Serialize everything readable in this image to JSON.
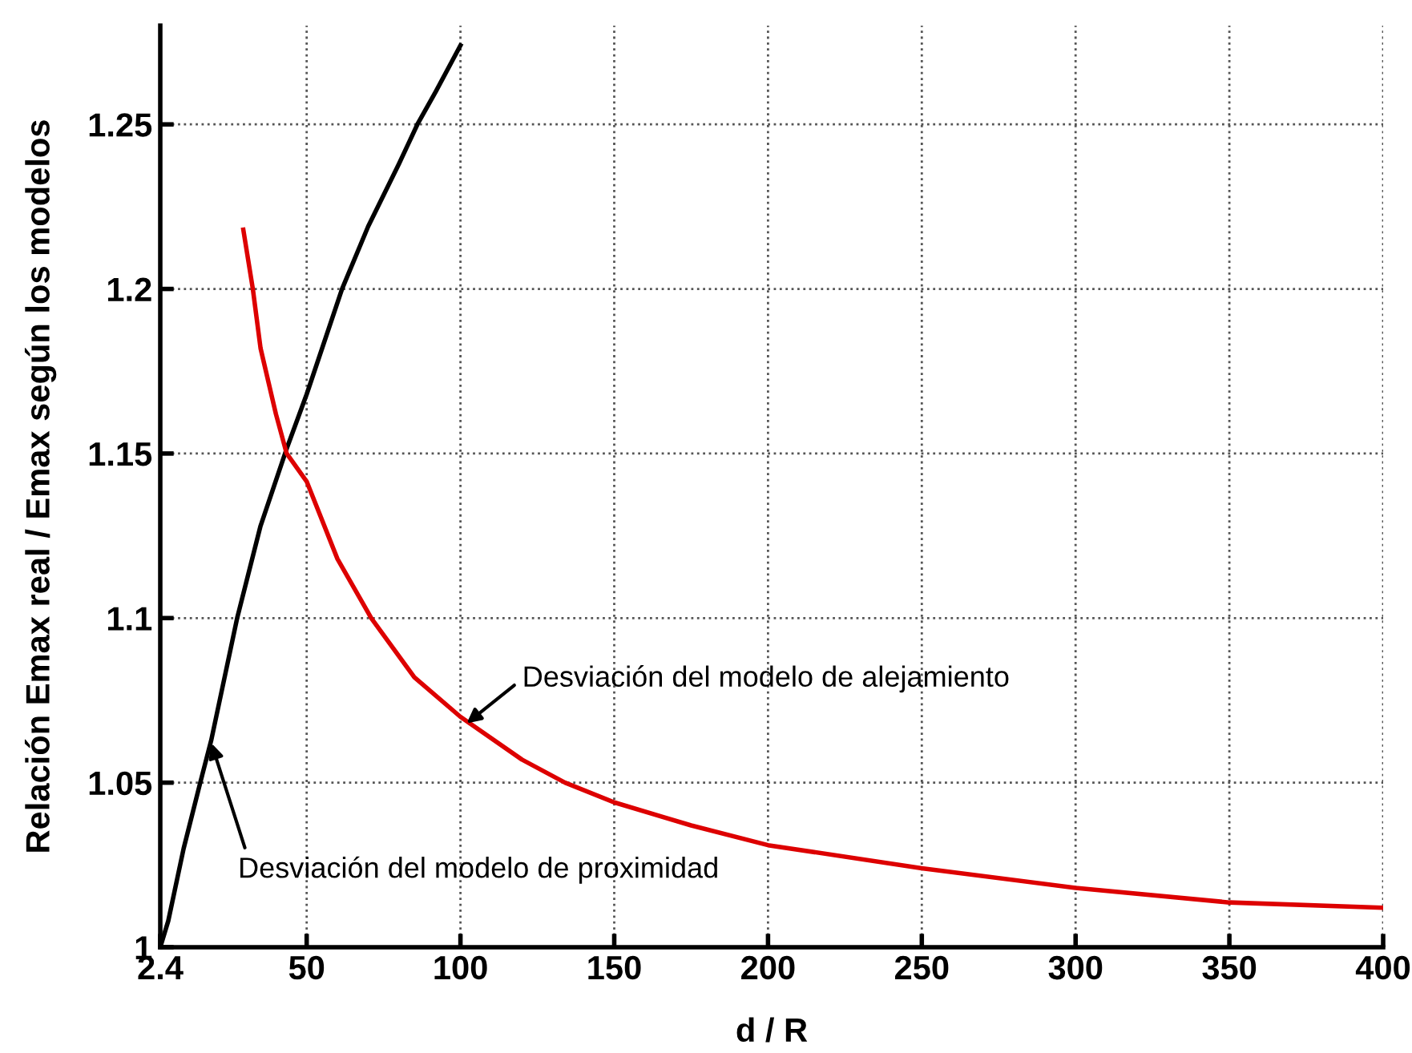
{
  "chart_data": {
    "type": "line",
    "xlabel": "d / R",
    "ylabel": "Relación Emax real / Emax según los modelos",
    "xlim": [
      2.4,
      400
    ],
    "xticks": [
      2.4,
      50,
      100,
      150,
      200,
      250,
      300,
      350,
      400
    ],
    "ylim": [
      1,
      1.28
    ],
    "yticks": [
      1,
      1.05,
      1.1,
      1.15,
      1.2,
      1.25
    ],
    "grid": true,
    "line_style": "solid",
    "series": [
      {
        "color": "#000000",
        "x": [
          2.4,
          5,
          10,
          15.4,
          19,
          27.4,
          35,
          43.7,
          50,
          61.5,
          70,
          80,
          86,
          92,
          100
        ],
        "values": [
          1.0,
          1.008,
          1.03,
          1.05,
          1.063,
          1.1,
          1.128,
          1.152,
          1.168,
          1.2,
          1.219,
          1.238,
          1.25,
          1.26,
          1.274
        ]
      },
      {
        "color": "#dd0000",
        "x": [
          29.4,
          32.5,
          35,
          40,
          43.5,
          50,
          60,
          71,
          85,
          100,
          120,
          134,
          150,
          175,
          200,
          250,
          300,
          350,
          400
        ],
        "values": [
          1.218,
          1.2,
          1.182,
          1.162,
          1.15,
          1.1415,
          1.118,
          1.1,
          1.082,
          1.07,
          1.057,
          1.05,
          1.044,
          1.037,
          1.031,
          1.024,
          1.018,
          1.0136,
          1.012
        ]
      }
    ],
    "annotations": [
      {
        "text": "Desviación del modelo de alejamiento",
        "x": 102,
        "y": 1.068
      },
      {
        "text": "Desviación del modelo de proximidad",
        "x": 19,
        "y": 1.062
      }
    ]
  }
}
